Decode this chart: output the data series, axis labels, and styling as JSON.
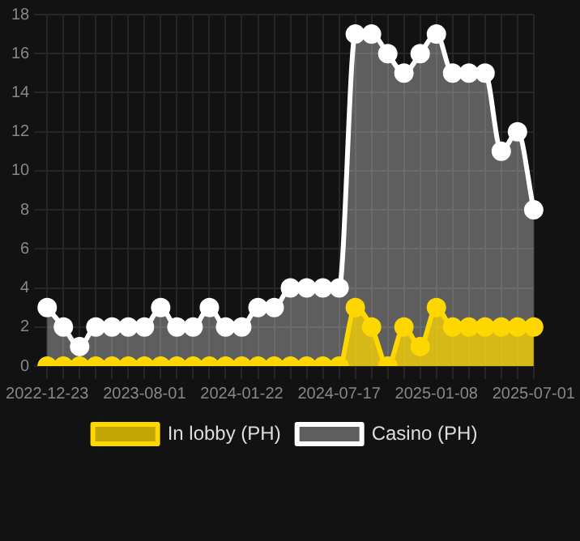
{
  "chart_data": {
    "type": "area",
    "categories": [
      "2022-12-23",
      null,
      null,
      null,
      null,
      null,
      "2023-08-01",
      null,
      null,
      null,
      null,
      null,
      "2024-01-22",
      null,
      null,
      null,
      null,
      null,
      "2024-07-17",
      null,
      null,
      null,
      null,
      null,
      "2025-01-08",
      null,
      null,
      null,
      null,
      null,
      "2025-07-01"
    ],
    "series": [
      {
        "name": "In lobby (PH)",
        "color": "#ffd700",
        "values": [
          0,
          0,
          0,
          0,
          0,
          0,
          0,
          0,
          0,
          0,
          0,
          0,
          0,
          0,
          0,
          0,
          0,
          0,
          0,
          3,
          2,
          0,
          2,
          1,
          3,
          2,
          2,
          2,
          2,
          2,
          2
        ]
      },
      {
        "name": "Casino (PH)",
        "color": "#ffffff",
        "values": [
          3,
          2,
          1,
          2,
          2,
          2,
          2,
          3,
          2,
          2,
          3,
          2,
          2,
          3,
          3,
          4,
          4,
          4,
          4,
          17,
          17,
          16,
          15,
          16,
          17,
          15,
          15,
          15,
          11,
          12,
          8
        ]
      }
    ],
    "ylim": [
      0,
      18
    ],
    "yticks": [
      0,
      2,
      4,
      6,
      8,
      10,
      12,
      14,
      16,
      18
    ],
    "grid": true,
    "legend": "bottom",
    "marker": "circle",
    "line_style": "solid"
  }
}
